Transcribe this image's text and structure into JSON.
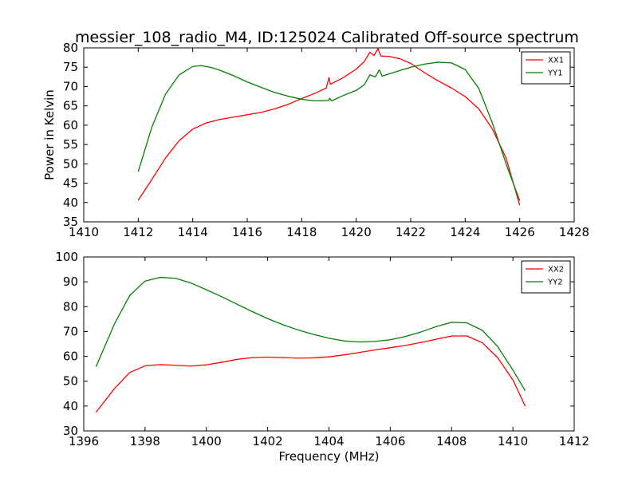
{
  "title": "messier_108_radio_M4, ID:125024 Calibrated Off-source spectrum",
  "chart_data": [
    {
      "type": "line",
      "xlabel": "",
      "ylabel": "Power in Kelvin",
      "xlim": [
        1410,
        1428
      ],
      "ylim": [
        35,
        80
      ],
      "xticks": [
        1410,
        1412,
        1414,
        1416,
        1418,
        1420,
        1422,
        1424,
        1426,
        1428
      ],
      "yticks": [
        35,
        40,
        45,
        50,
        55,
        60,
        65,
        70,
        75,
        80
      ],
      "legend_position": "top-right",
      "series": [
        {
          "name": "XX1",
          "color": "#ff0000",
          "points": [
            [
              1412.0,
              40.6
            ],
            [
              1412.5,
              46.0
            ],
            [
              1413.0,
              51.5
            ],
            [
              1413.5,
              56.0
            ],
            [
              1414.0,
              59.0
            ],
            [
              1414.5,
              60.6
            ],
            [
              1415.0,
              61.5
            ],
            [
              1415.5,
              62.1
            ],
            [
              1416.0,
              62.7
            ],
            [
              1416.5,
              63.3
            ],
            [
              1417.0,
              64.2
            ],
            [
              1417.5,
              65.4
            ],
            [
              1418.0,
              66.9
            ],
            [
              1418.5,
              68.3
            ],
            [
              1418.9,
              69.6
            ],
            [
              1419.0,
              72.3
            ],
            [
              1419.05,
              70.6
            ],
            [
              1419.5,
              72.2
            ],
            [
              1420.0,
              74.5
            ],
            [
              1420.3,
              76.5
            ],
            [
              1420.5,
              78.9
            ],
            [
              1420.65,
              78.0
            ],
            [
              1420.8,
              79.8
            ],
            [
              1420.9,
              77.9
            ],
            [
              1421.2,
              77.8
            ],
            [
              1421.6,
              77.2
            ],
            [
              1422.0,
              76.0
            ],
            [
              1422.5,
              73.6
            ],
            [
              1423.0,
              71.5
            ],
            [
              1423.5,
              69.6
            ],
            [
              1424.0,
              67.4
            ],
            [
              1424.5,
              64.2
            ],
            [
              1425.0,
              59.0
            ],
            [
              1425.5,
              51.5
            ],
            [
              1426.0,
              39.3
            ]
          ]
        },
        {
          "name": "YY1",
          "color": "#008000",
          "points": [
            [
              1412.0,
              48.0
            ],
            [
              1412.5,
              59.5
            ],
            [
              1413.0,
              68.0
            ],
            [
              1413.5,
              73.0
            ],
            [
              1414.0,
              75.2
            ],
            [
              1414.3,
              75.4
            ],
            [
              1414.7,
              74.9
            ],
            [
              1415.0,
              74.2
            ],
            [
              1415.5,
              72.8
            ],
            [
              1416.0,
              71.2
            ],
            [
              1416.5,
              69.8
            ],
            [
              1417.0,
              68.5
            ],
            [
              1417.5,
              67.5
            ],
            [
              1418.0,
              66.7
            ],
            [
              1418.5,
              66.3
            ],
            [
              1419.0,
              66.4
            ],
            [
              1419.02,
              67.0
            ],
            [
              1419.1,
              66.3
            ],
            [
              1419.5,
              67.6
            ],
            [
              1420.0,
              69.0
            ],
            [
              1420.3,
              70.5
            ],
            [
              1420.5,
              73.0
            ],
            [
              1420.7,
              72.5
            ],
            [
              1420.85,
              74.3
            ],
            [
              1420.95,
              72.7
            ],
            [
              1421.5,
              73.9
            ],
            [
              1422.0,
              75.0
            ],
            [
              1422.5,
              75.8
            ],
            [
              1423.0,
              76.3
            ],
            [
              1423.5,
              76.1
            ],
            [
              1424.0,
              74.4
            ],
            [
              1424.5,
              69.5
            ],
            [
              1425.0,
              60.5
            ],
            [
              1425.5,
              50.0
            ],
            [
              1426.0,
              40.5
            ]
          ]
        }
      ]
    },
    {
      "type": "line",
      "xlabel": "Frequency (MHz)",
      "ylabel": "",
      "xlim": [
        1396,
        1412
      ],
      "ylim": [
        30,
        100
      ],
      "xticks": [
        1396,
        1398,
        1400,
        1402,
        1404,
        1406,
        1408,
        1410,
        1412
      ],
      "yticks": [
        30,
        40,
        50,
        60,
        70,
        80,
        90,
        100
      ],
      "legend_position": "top-right",
      "series": [
        {
          "name": "XX2",
          "color": "#ff0000",
          "points": [
            [
              1396.4,
              37.5
            ],
            [
              1397.0,
              47.0
            ],
            [
              1397.5,
              53.5
            ],
            [
              1398.0,
              56.2
            ],
            [
              1398.5,
              56.7
            ],
            [
              1399.0,
              56.4
            ],
            [
              1399.5,
              56.1
            ],
            [
              1400.0,
              56.6
            ],
            [
              1400.5,
              57.6
            ],
            [
              1401.0,
              58.8
            ],
            [
              1401.5,
              59.5
            ],
            [
              1402.0,
              59.7
            ],
            [
              1402.5,
              59.5
            ],
            [
              1403.0,
              59.3
            ],
            [
              1403.5,
              59.4
            ],
            [
              1404.0,
              59.8
            ],
            [
              1404.5,
              60.6
            ],
            [
              1405.0,
              61.6
            ],
            [
              1405.5,
              62.6
            ],
            [
              1406.0,
              63.5
            ],
            [
              1406.5,
              64.4
            ],
            [
              1407.0,
              65.6
            ],
            [
              1407.5,
              66.9
            ],
            [
              1408.0,
              68.2
            ],
            [
              1408.5,
              68.2
            ],
            [
              1409.0,
              65.5
            ],
            [
              1409.5,
              59.5
            ],
            [
              1410.0,
              50.5
            ],
            [
              1410.4,
              40.0
            ]
          ]
        },
        {
          "name": "YY2",
          "color": "#008000",
          "points": [
            [
              1396.4,
              55.8
            ],
            [
              1397.0,
              73.0
            ],
            [
              1397.5,
              84.5
            ],
            [
              1398.0,
              90.3
            ],
            [
              1398.5,
              91.8
            ],
            [
              1399.0,
              91.4
            ],
            [
              1399.5,
              89.5
            ],
            [
              1400.0,
              86.8
            ],
            [
              1400.5,
              84.0
            ],
            [
              1401.0,
              81.0
            ],
            [
              1401.5,
              78.0
            ],
            [
              1402.0,
              75.2
            ],
            [
              1402.5,
              72.7
            ],
            [
              1403.0,
              70.6
            ],
            [
              1403.5,
              68.8
            ],
            [
              1404.0,
              67.3
            ],
            [
              1404.5,
              66.2
            ],
            [
              1405.0,
              65.8
            ],
            [
              1405.5,
              66.0
            ],
            [
              1406.0,
              66.7
            ],
            [
              1406.5,
              68.0
            ],
            [
              1407.0,
              69.8
            ],
            [
              1407.5,
              72.0
            ],
            [
              1408.0,
              73.7
            ],
            [
              1408.5,
              73.5
            ],
            [
              1409.0,
              70.5
            ],
            [
              1409.5,
              64.0
            ],
            [
              1410.0,
              54.5
            ],
            [
              1410.4,
              46.2
            ]
          ]
        }
      ]
    }
  ]
}
